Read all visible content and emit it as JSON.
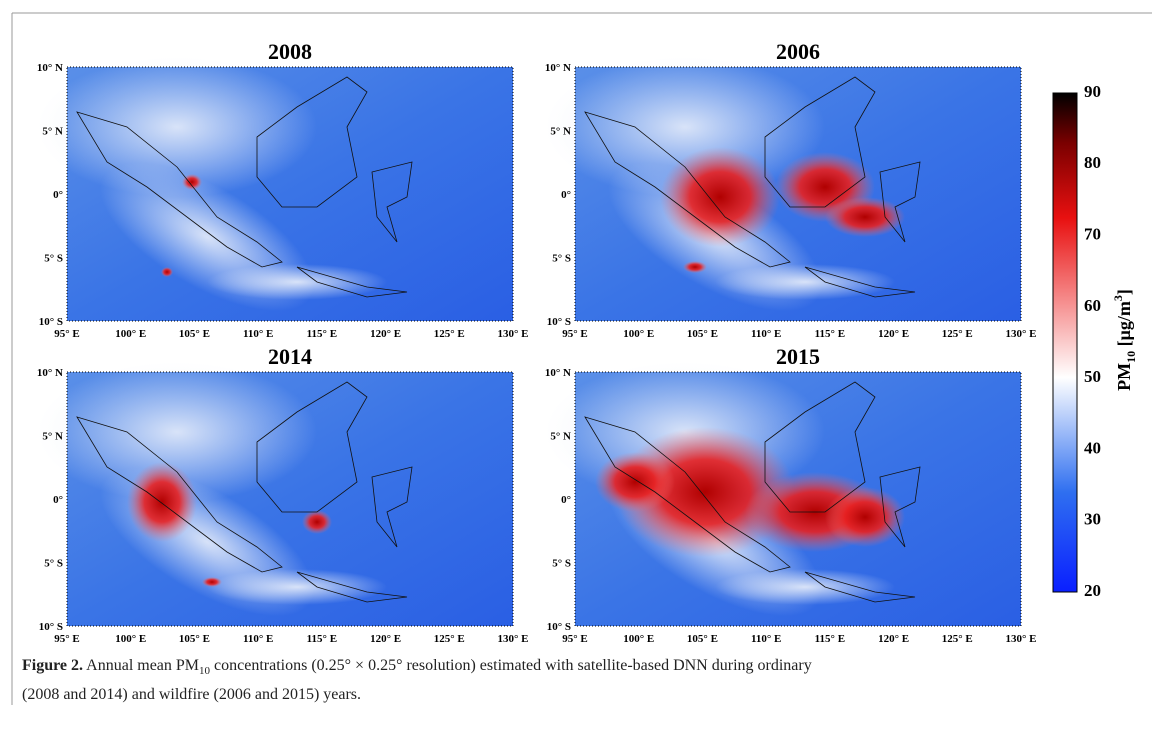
{
  "panels": [
    {
      "title": "2008"
    },
    {
      "title": "2006"
    },
    {
      "title": "2014"
    },
    {
      "title": "2015"
    }
  ],
  "lat_ticks": [
    "10° N",
    "5° N",
    "0°",
    "5° S",
    "10° S"
  ],
  "lon_ticks": [
    "95° E",
    "100° E",
    "105° E",
    "110° E",
    "115° E",
    "120° E",
    "125° E",
    "130° E"
  ],
  "colorbar": {
    "label": {
      "main": "PM",
      "sub": "10",
      "unit": " [μg/m",
      "sup": "3",
      "close": "]"
    },
    "ticks": [
      90,
      80,
      70,
      60,
      50,
      40,
      30,
      20
    ]
  },
  "caption": {
    "label": "Figure 2.",
    "text_1": "Annual mean PM",
    "sub": "10",
    "text_2": "concentrations (0.25° × 0.25° resolution) estimated with satellite-based DNN during ordinary",
    "text_3": "(2008 and 2014) and wildfire (2006 and 2015) years."
  }
}
